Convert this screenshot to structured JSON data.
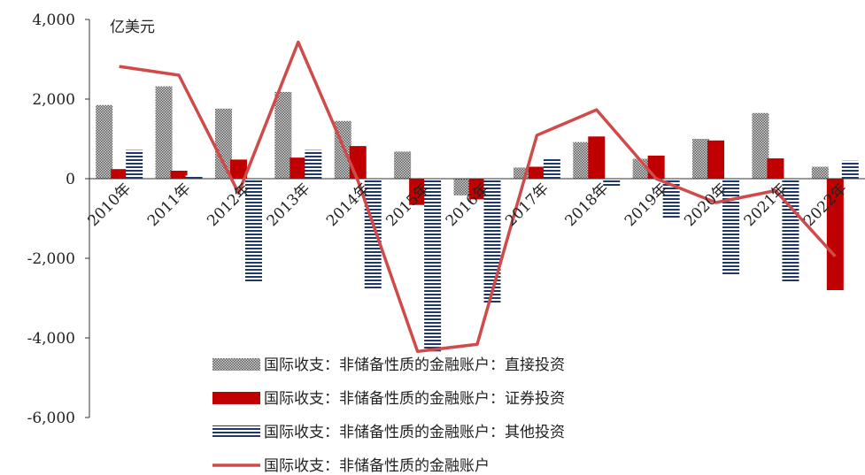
{
  "chart_data": {
    "type": "bar",
    "unit": "亿美元",
    "categories": [
      "2010年",
      "2011年",
      "2012年",
      "2013年",
      "2014年",
      "2015年",
      "2016年",
      "2017年",
      "2018年",
      "2019年",
      "2020年",
      "2021年",
      "2022年"
    ],
    "series": [
      {
        "name": "国际收支：非储备性质的金融账户：直接投资",
        "kind": "bar",
        "color": "#9a9a9a",
        "values": [
          1850,
          2320,
          1760,
          2180,
          1450,
          680,
          -420,
          280,
          920,
          500,
          1000,
          1650,
          300
        ]
      },
      {
        "name": "国际收支：非储备性质的金融账户：证券投资",
        "kind": "bar",
        "color": "#c00000",
        "values": [
          240,
          200,
          480,
          530,
          820,
          -660,
          -520,
          300,
          1060,
          580,
          960,
          510,
          -2800
        ]
      },
      {
        "name": "国际收支：非储备性质的金融账户：其他投资",
        "kind": "bar",
        "color": "#1f3864",
        "values": [
          720,
          80,
          -2600,
          720,
          -2780,
          -4340,
          -3150,
          520,
          -180,
          -1000,
          -2440,
          -2580,
          450
        ]
      },
      {
        "name": "国际收支：非储备性质的金融账户",
        "kind": "line",
        "color": "#d04a4a",
        "values": [
          2820,
          2600,
          -360,
          3430,
          -50,
          -4340,
          -4160,
          1090,
          1730,
          0,
          -600,
          -300,
          -1950
        ]
      }
    ],
    "yticks": [
      "4,000",
      "2,000",
      "0",
      "-2,000",
      "-4,000",
      "-6,000"
    ],
    "ytick_values": [
      4000,
      2000,
      0,
      -2000,
      -4000,
      -6000
    ],
    "ylim": [
      -6000,
      4000
    ],
    "legend_position": "bottom-center",
    "grid": false
  }
}
